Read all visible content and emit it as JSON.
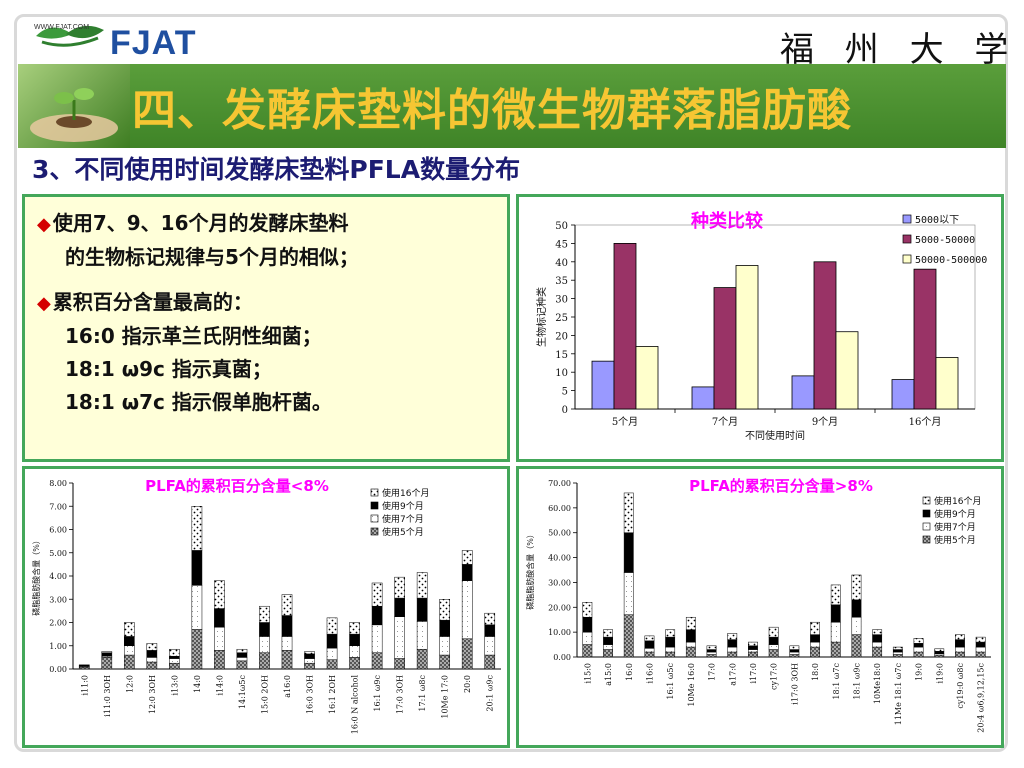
{
  "header": {
    "logo_text": "FJAT",
    "logo_url": "WWW.FJAT.COM",
    "university": "福 州 大 学",
    "title": "四、发酵床垫料的微生物群落脂肪酸",
    "subtitle": "3、不同使用时间发酵床垫料PFLA数量分布"
  },
  "text_box": {
    "b1_l1": "使用7、9、16个月的发酵床垫料",
    "b1_l2": "的生物标记规律与5个月的相似；",
    "b2_l1": "累积百分含量最高的：",
    "b2_l2": "16:0 指示革兰氏阴性细菌；",
    "b2_l3": "18:1 ω9c 指示真菌；",
    "b2_l4": "18:1 ω7c 指示假单胞杆菌。",
    "bullet_symbol": "◆"
  },
  "colors": {
    "green_bar": "#4a9131",
    "title_yellow": "#f6c633",
    "subtitle_navy": "#1c1c72",
    "box_border": "#44a75a",
    "text_box_bg": "#ffffd9",
    "series_5000": "#9999ff",
    "series_5000_50000": "#993366",
    "series_50000_500000": "#ffffcc",
    "chart_title_pink": "#ff00ff"
  },
  "chart_data": [
    {
      "type": "bar",
      "title": "种类比较",
      "ylabel": "生物标记种类",
      "xlabel": "不同使用时间",
      "ylim": [
        0,
        50
      ],
      "yticks": [
        "0",
        "5",
        "10",
        "15",
        "20",
        "25",
        "30",
        "35",
        "40",
        "45",
        "50"
      ],
      "categories": [
        "5个月",
        "7个月",
        "9个月",
        "16个月"
      ],
      "legend_position": "top-right",
      "series": [
        {
          "name": "5000以下",
          "values": [
            13,
            6,
            9,
            8
          ]
        },
        {
          "name": "5000-50000",
          "values": [
            45,
            33,
            40,
            38
          ]
        },
        {
          "name": "50000-500000",
          "values": [
            17,
            39,
            21,
            14
          ]
        }
      ]
    },
    {
      "type": "bar",
      "stacked": true,
      "title": "PLFA的累积百分含量<8%",
      "ylabel": "磷脂脂肪酸含量（%）",
      "ylim": [
        0,
        8
      ],
      "yticks": [
        "0.00",
        "1.00",
        "2.00",
        "3.00",
        "4.00",
        "5.00",
        "6.00",
        "7.00",
        "8.00"
      ],
      "categories": [
        "i11:0",
        "i11:0 3OH",
        "12:0",
        "12:0 3OH",
        "i13:0",
        "14:0",
        "i14:0",
        "14:1ω5c",
        "15:0 2OH",
        "a16:0",
        "16:0 3OH",
        "16:1 2OH",
        "16:0 N alcohol",
        "16:1 ω9c",
        "17:0 3OH",
        "17:1 ω8c",
        "10Me 17:0",
        "20:0",
        "20:1 ω9c"
      ],
      "legend_position": "top-right",
      "series": [
        {
          "name": "使用16个月",
          "values": [
            0.02,
            0.05,
            0.6,
            0.3,
            0.3,
            1.9,
            1.2,
            0.15,
            0.7,
            0.9,
            0.1,
            0.7,
            0.5,
            1.0,
            0.9,
            1.1,
            0.9,
            0.6,
            0.5
          ]
        },
        {
          "name": "使用9个月",
          "values": [
            0.05,
            0.15,
            0.4,
            0.3,
            0.1,
            1.5,
            0.8,
            0.2,
            0.6,
            0.9,
            0.2,
            0.6,
            0.5,
            0.8,
            0.8,
            1.0,
            0.7,
            0.7,
            0.5
          ]
        },
        {
          "name": "使用7个月",
          "values": [
            0.03,
            0.05,
            0.4,
            0.2,
            0.2,
            1.9,
            1.0,
            0.15,
            0.7,
            0.6,
            0.2,
            0.5,
            0.5,
            1.2,
            1.8,
            1.2,
            0.8,
            2.5,
            0.8
          ]
        },
        {
          "name": "使用5个月",
          "values": [
            0.08,
            0.5,
            0.6,
            0.3,
            0.25,
            1.7,
            0.8,
            0.35,
            0.7,
            0.8,
            0.25,
            0.4,
            0.5,
            0.7,
            0.45,
            0.85,
            0.6,
            1.3,
            0.6
          ]
        }
      ]
    },
    {
      "type": "bar",
      "stacked": true,
      "title": "PLFA的累积百分含量>8%",
      "ylabel": "磷脂脂肪酸含量（%）",
      "ylim": [
        0,
        70
      ],
      "yticks": [
        "0.00",
        "10.00",
        "20.00",
        "30.00",
        "40.00",
        "50.00",
        "60.00",
        "70.00"
      ],
      "categories": [
        "i15:0",
        "a15:0",
        "16:0",
        "i16:0",
        "16:1 ω5c",
        "10Me 16:0",
        "17:0",
        "a17:0",
        "i17:0",
        "cy17:0",
        "i17:0 3OH",
        "18:0",
        "18:1 ω7c",
        "18:1 ω9c",
        "10Me18:0",
        "11Me 18:1 ω7c",
        "19:0",
        "i19:0",
        "cy19:0 ω8c",
        "20:4 ω6,9,12,15c"
      ],
      "legend_position": "top-right",
      "series": [
        {
          "name": "使用16个月",
          "values": [
            6,
            3,
            16,
            2,
            3,
            5,
            1.5,
            2.5,
            1.5,
            4,
            1.5,
            5,
            8,
            10,
            2,
            1,
            2,
            1,
            2,
            2
          ]
        },
        {
          "name": "使用9个月",
          "values": [
            6,
            3,
            16,
            3,
            4,
            5,
            1,
            3,
            1.5,
            3,
            1,
            3,
            7,
            7,
            3,
            1,
            1.5,
            1,
            3,
            2
          ]
        },
        {
          "name": "使用7个月",
          "values": [
            5,
            2,
            17,
            1.5,
            2,
            2,
            1,
            2,
            1,
            2,
            1,
            2,
            8,
            7,
            2,
            1,
            2,
            0.5,
            2,
            2
          ]
        },
        {
          "name": "使用5个月",
          "values": [
            5,
            3,
            17,
            2,
            2,
            4,
            1,
            2,
            2,
            3,
            1,
            4,
            6,
            9,
            4,
            1,
            2,
            0.8,
            2,
            2
          ]
        }
      ]
    }
  ]
}
